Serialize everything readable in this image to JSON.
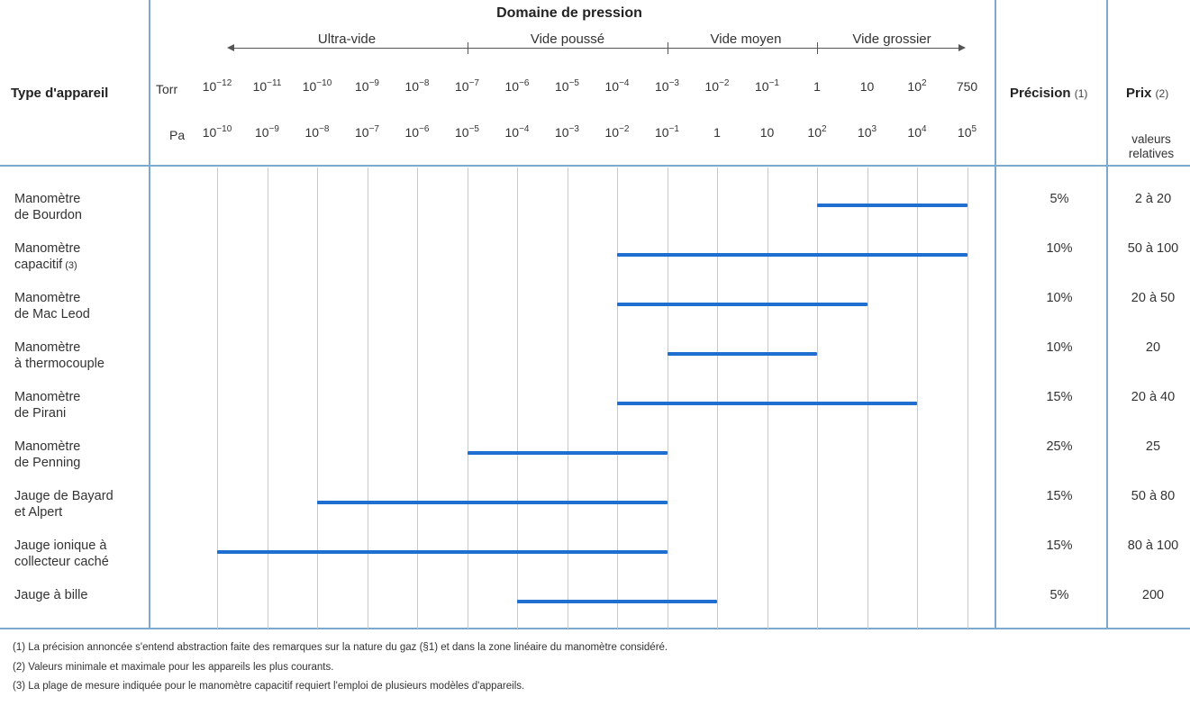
{
  "header": {
    "title": "Domaine de pression",
    "type_label": "Type d'appareil",
    "precision_label": "Précision",
    "precision_note": "(1)",
    "price_label": "Prix",
    "price_note": "(2)",
    "price_sub_1": "valeurs",
    "price_sub_2": "relatives",
    "torr_label": "Torr",
    "pa_label": "Pa"
  },
  "domains": [
    "Ultra-vide",
    "Vide poussé",
    "Vide moyen",
    "Vide grossier"
  ],
  "torr_ticks": [
    {
      "base": "10",
      "exp": "−12"
    },
    {
      "base": "10",
      "exp": "−11"
    },
    {
      "base": "10",
      "exp": "−10"
    },
    {
      "base": "10",
      "exp": "−9"
    },
    {
      "base": "10",
      "exp": "−8"
    },
    {
      "base": "10",
      "exp": "−7"
    },
    {
      "base": "10",
      "exp": "−6"
    },
    {
      "base": "10",
      "exp": "−5"
    },
    {
      "base": "10",
      "exp": "−4"
    },
    {
      "base": "10",
      "exp": "−3"
    },
    {
      "base": "10",
      "exp": "−2"
    },
    {
      "base": "10",
      "exp": "−1"
    },
    {
      "base": "1",
      "exp": ""
    },
    {
      "base": "10",
      "exp": ""
    },
    {
      "base": "10",
      "exp": "2"
    },
    {
      "base": "750",
      "exp": ""
    }
  ],
  "pa_ticks": [
    {
      "base": "10",
      "exp": "−10"
    },
    {
      "base": "10",
      "exp": "−9"
    },
    {
      "base": "10",
      "exp": "−8"
    },
    {
      "base": "10",
      "exp": "−7"
    },
    {
      "base": "10",
      "exp": "−6"
    },
    {
      "base": "10",
      "exp": "−5"
    },
    {
      "base": "10",
      "exp": "−4"
    },
    {
      "base": "10",
      "exp": "−3"
    },
    {
      "base": "10",
      "exp": "−2"
    },
    {
      "base": "10",
      "exp": "−1"
    },
    {
      "base": "1",
      "exp": ""
    },
    {
      "base": "10",
      "exp": ""
    },
    {
      "base": "10",
      "exp": "2"
    },
    {
      "base": "10",
      "exp": "3"
    },
    {
      "base": "10",
      "exp": "4"
    },
    {
      "base": "10",
      "exp": "5"
    }
  ],
  "instruments": [
    {
      "name_1": "Manomètre",
      "name_2": "de Bourdon",
      "name_note": "",
      "pa_min_exp": 2,
      "pa_max_exp": 5,
      "precision": "5%",
      "price": "2 à 20"
    },
    {
      "name_1": "Manomètre",
      "name_2": "capacitif",
      "name_note": "(3)",
      "pa_min_exp": -2,
      "pa_max_exp": 5,
      "precision": "10%",
      "price": "50 à 100"
    },
    {
      "name_1": "Manomètre",
      "name_2": "de Mac Leod",
      "name_note": "",
      "pa_min_exp": -2,
      "pa_max_exp": 3,
      "precision": "10%",
      "price": "20 à 50"
    },
    {
      "name_1": "Manomètre",
      "name_2": "à thermocouple",
      "name_note": "",
      "pa_min_exp": -1,
      "pa_max_exp": 2,
      "precision": "10%",
      "price": "20"
    },
    {
      "name_1": "Manomètre",
      "name_2": "de Pirani",
      "name_note": "",
      "pa_min_exp": -2,
      "pa_max_exp": 4,
      "precision": "15%",
      "price": "20 à 40"
    },
    {
      "name_1": "Manomètre",
      "name_2": "de Penning",
      "name_note": "",
      "pa_min_exp": -5,
      "pa_max_exp": -1,
      "precision": "25%",
      "price": "25"
    },
    {
      "name_1": "Jauge de Bayard",
      "name_2": "et Alpert",
      "name_note": "",
      "pa_min_exp": -8,
      "pa_max_exp": -1,
      "precision": "15%",
      "price": "50 à 80"
    },
    {
      "name_1": "Jauge ionique à",
      "name_2": "collecteur caché",
      "name_note": "",
      "pa_min_exp": -10,
      "pa_max_exp": -1,
      "precision": "15%",
      "price": "80 à 100"
    },
    {
      "name_1": "Jauge à bille",
      "name_2": "",
      "name_note": "",
      "pa_min_exp": -4,
      "pa_max_exp": 0,
      "precision": "5%",
      "price": "200"
    }
  ],
  "footnotes": [
    "(1) La précision annoncée s'entend abstraction faite des remarques sur la nature du gaz (§1) et dans la zone linéaire du manomètre considéré.",
    "(2) Valeurs minimale et maximale pour les appareils les plus courants.",
    "(3) La plage de mesure indiquée pour le manomètre capacitif requiert l'emploi de plusieurs modèles d'appareils."
  ],
  "colors": {
    "range_bar": "#1f6fd1",
    "frame_lines": "#7ea9cf",
    "grid_lines": "#c9c9c9"
  }
}
